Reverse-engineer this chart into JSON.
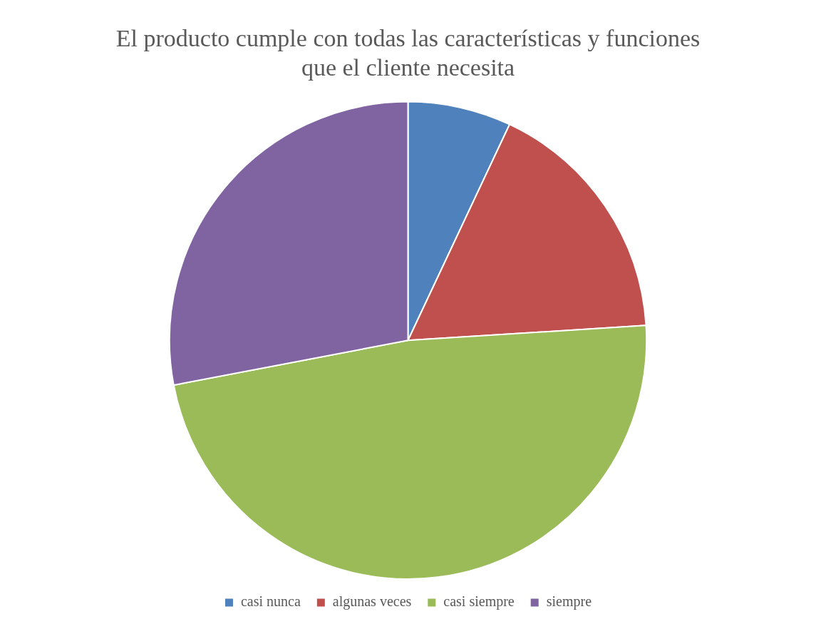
{
  "chart_data": {
    "type": "pie",
    "title": "El producto cumple con todas las características y funciones que el cliente necesita",
    "categories": [
      "casi nunca",
      "algunas veces",
      "casi siempre",
      "siempre"
    ],
    "values": [
      7,
      17,
      48,
      28
    ],
    "colors": [
      "#4f81bd",
      "#c0504d",
      "#9bbb59",
      "#8064a2"
    ],
    "legend": "bottom"
  }
}
